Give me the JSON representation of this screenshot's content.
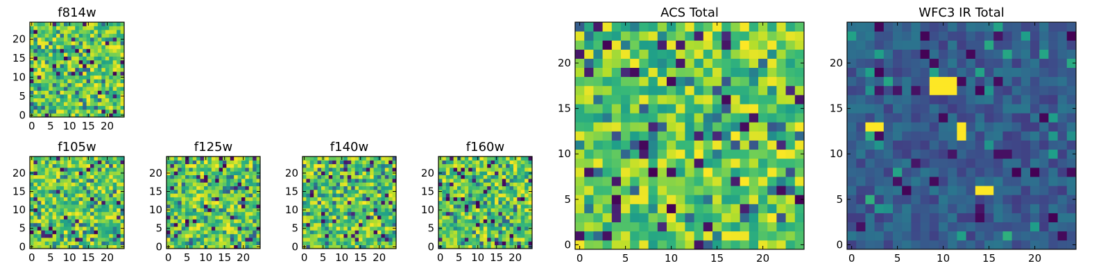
{
  "chart_data": [
    {
      "type": "heatmap",
      "title": "f814w",
      "xlabel": "",
      "ylabel": "",
      "grid_size": 25,
      "xlim": [
        -0.5,
        24.5
      ],
      "ylim": [
        -0.5,
        24.5
      ],
      "xticks": [
        0,
        5,
        10,
        15,
        20
      ],
      "yticks": [
        0,
        5,
        10,
        15,
        20
      ],
      "colormap": "viridis",
      "values_description": "random per-pixel noise, mostly high values (yellow-green) with scattered low (dark blue) pixels"
    },
    {
      "type": "heatmap",
      "title": "f105w",
      "grid_size": 25,
      "xlim": [
        -0.5,
        24.5
      ],
      "ylim": [
        -0.5,
        24.5
      ],
      "xticks": [
        0,
        5,
        10,
        15,
        20
      ],
      "yticks": [
        0,
        5,
        10,
        15,
        20
      ],
      "colormap": "viridis"
    },
    {
      "type": "heatmap",
      "title": "f125w",
      "grid_size": 25,
      "xlim": [
        -0.5,
        24.5
      ],
      "ylim": [
        -0.5,
        24.5
      ],
      "xticks": [
        0,
        5,
        10,
        15,
        20
      ],
      "yticks": [
        0,
        5,
        10,
        15,
        20
      ],
      "colormap": "viridis"
    },
    {
      "type": "heatmap",
      "title": "f140w",
      "grid_size": 25,
      "xlim": [
        -0.5,
        24.5
      ],
      "ylim": [
        -0.5,
        24.5
      ],
      "xticks": [
        0,
        5,
        10,
        15,
        20
      ],
      "yticks": [
        0,
        5,
        10,
        15,
        20
      ],
      "colormap": "viridis"
    },
    {
      "type": "heatmap",
      "title": "f160w",
      "grid_size": 25,
      "xlim": [
        -0.5,
        24.5
      ],
      "ylim": [
        -0.5,
        24.5
      ],
      "xticks": [
        0,
        5,
        10,
        15,
        20
      ],
      "yticks": [
        0,
        5,
        10,
        15,
        20
      ],
      "colormap": "viridis"
    },
    {
      "type": "heatmap",
      "title": "ACS Total",
      "grid_size": 25,
      "xlim": [
        -0.5,
        24.5
      ],
      "ylim": [
        -0.5,
        24.5
      ],
      "xticks": [
        0,
        5,
        10,
        15,
        20
      ],
      "yticks": [
        0,
        5,
        10,
        15,
        20
      ],
      "colormap": "viridis"
    },
    {
      "type": "heatmap",
      "title": "WFC3 IR Total",
      "grid_size": 25,
      "xlim": [
        -0.5,
        24.5
      ],
      "ylim": [
        -0.5,
        24.5
      ],
      "xticks": [
        0,
        5,
        10,
        15,
        20
      ],
      "yticks": [
        0,
        5,
        10,
        15,
        20
      ],
      "colormap": "viridis",
      "bright_pixels": [
        [
          9,
          17
        ],
        [
          10,
          17
        ],
        [
          11,
          17
        ],
        [
          9,
          18
        ],
        [
          10,
          18
        ],
        [
          11,
          18
        ],
        [
          2,
          13
        ],
        [
          3,
          13
        ],
        [
          12,
          12
        ],
        [
          12,
          13
        ],
        [
          14,
          6
        ],
        [
          15,
          6
        ]
      ]
    }
  ],
  "colors": {
    "viridis": [
      "#440154",
      "#3b528b",
      "#21918c",
      "#5ec962",
      "#fde725"
    ]
  }
}
